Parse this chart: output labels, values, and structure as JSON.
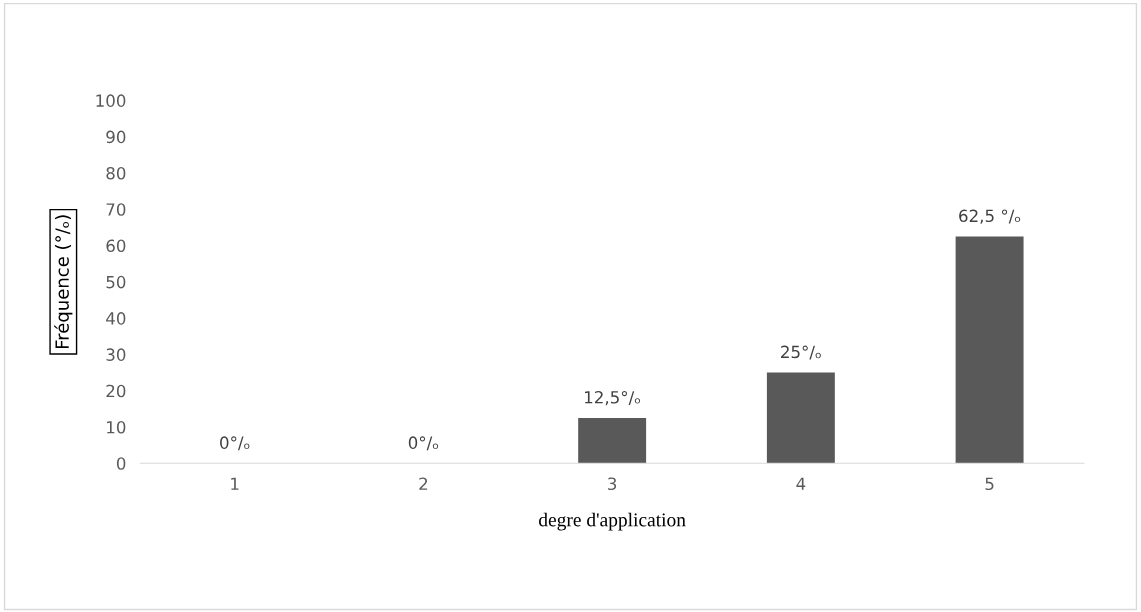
{
  "chart_data": {
    "type": "bar",
    "xlabel": "degre d'application",
    "ylabel": "Fréquence (°/ₒ)",
    "categories": [
      "1",
      "2",
      "3",
      "4",
      "5"
    ],
    "values": [
      0,
      0,
      12.5,
      25,
      62.5
    ],
    "value_labels": [
      "0°/ₒ",
      "0°/ₒ",
      "12,5°/ₒ",
      "25°/ₒ",
      "62,5 °/ₒ"
    ],
    "color": "#595959",
    "ylim": [
      0,
      100
    ],
    "yticks": [
      0,
      10,
      20,
      30,
      40,
      50,
      60,
      70,
      80,
      90,
      100
    ],
    "grid": false,
    "legend": false
  }
}
